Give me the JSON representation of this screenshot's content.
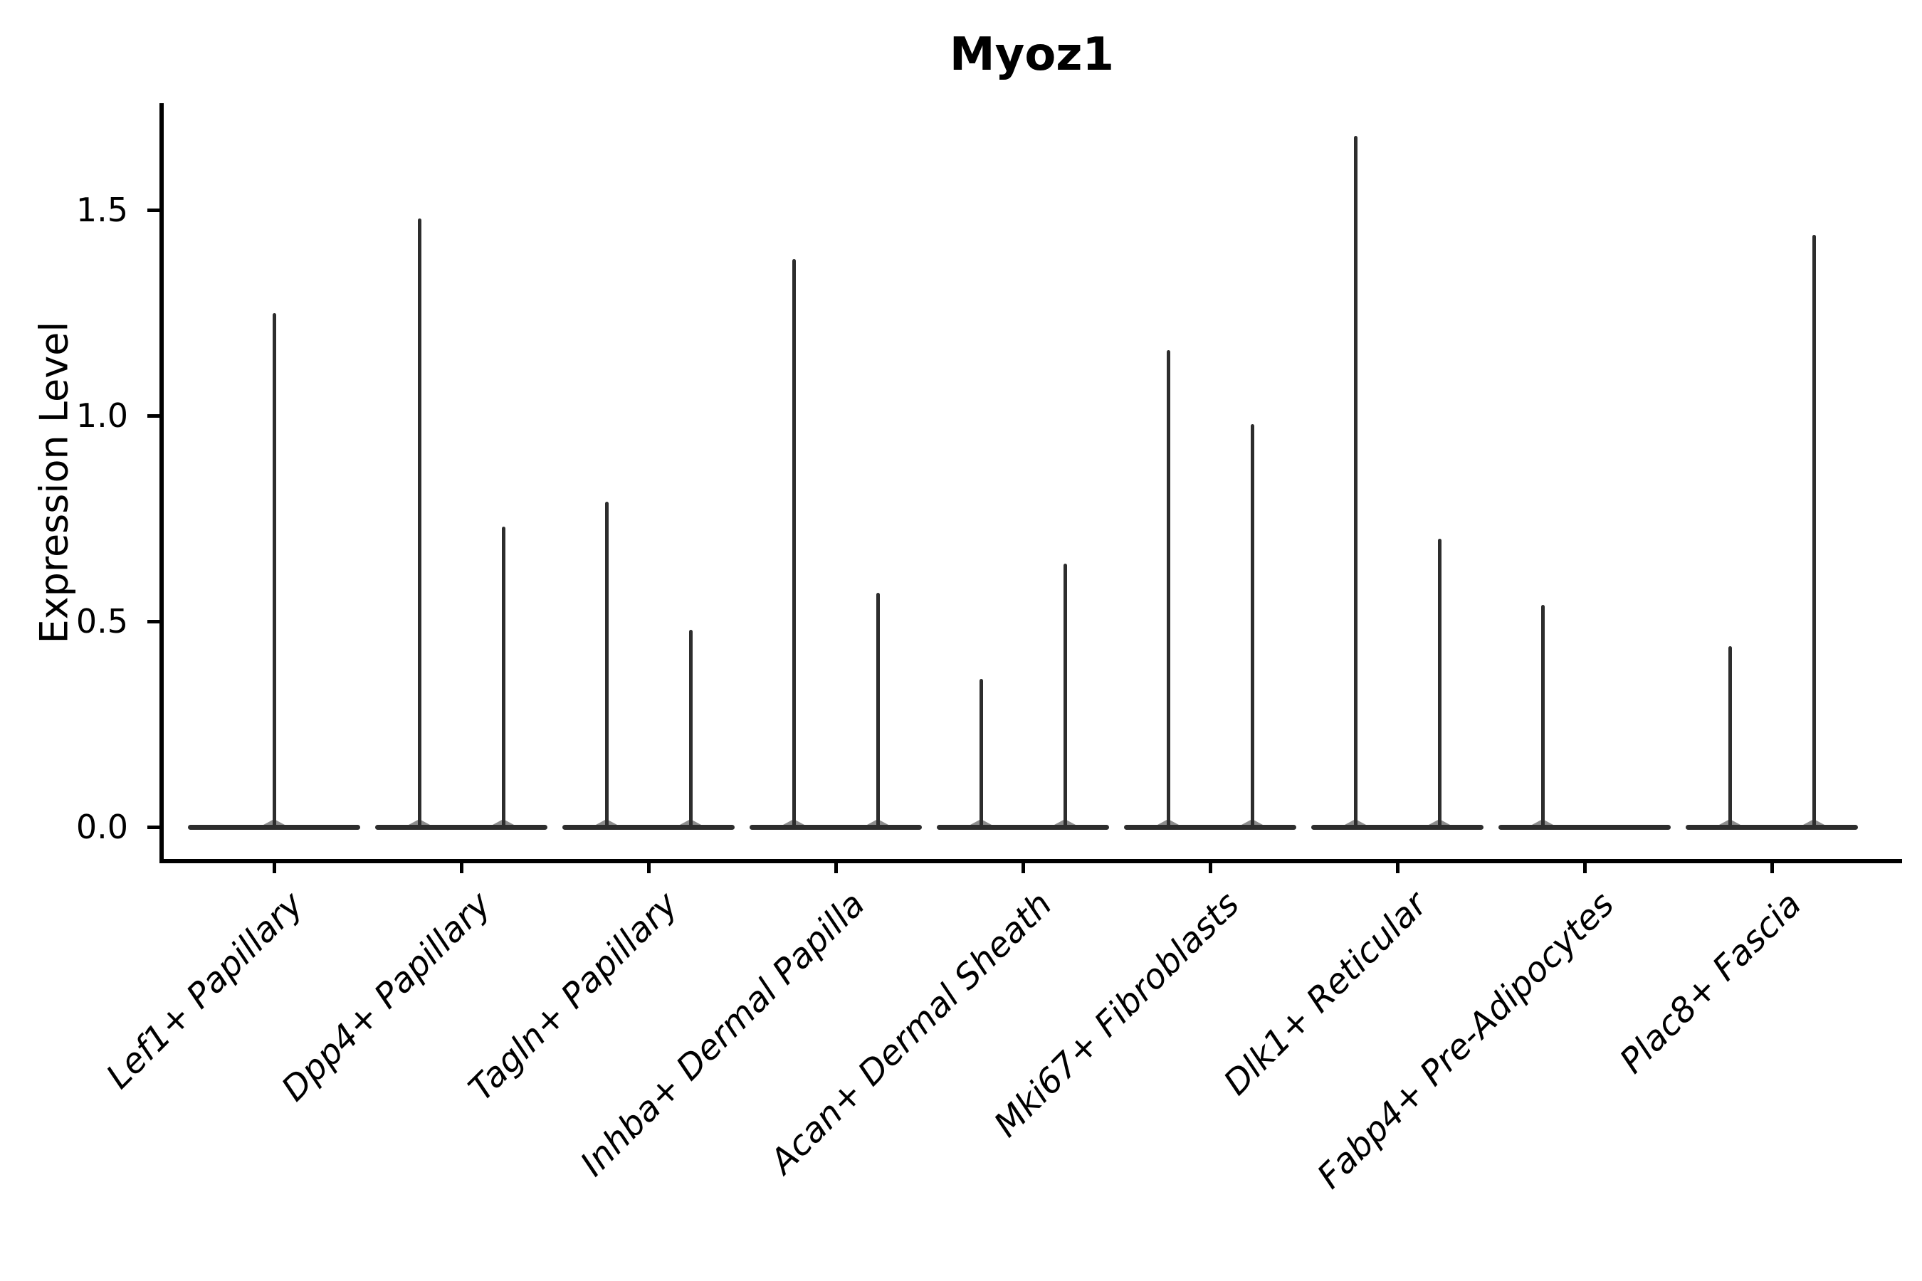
{
  "chart_data": {
    "type": "violin",
    "title": "Myoz1",
    "xlabel": "",
    "ylabel": "Expression Level",
    "ylim": [
      -0.08,
      1.76
    ],
    "yticks": [
      0.0,
      0.5,
      1.0,
      1.5
    ],
    "ytick_labels": [
      "0.0",
      "0.5",
      "1.0",
      "1.5"
    ],
    "grid": "off",
    "legend": "none",
    "ink_color": "#2d2d2d",
    "categories": [
      "Lef1+ Papillary",
      "Dpp4+ Papillary",
      "Tagln+ Papillary",
      "Inhba+ Dermal Papilla",
      "Acan+ Dermal Sheath",
      "Mki67+ Fibroblasts",
      "Dlk1+ Reticular",
      "Fabp4+ Pre-Adipocytes",
      "Plac8+ Fascia"
    ],
    "groups": [
      {
        "category": "Lef1+ Papillary",
        "base_value": 0,
        "spikes": [
          {
            "offset": 0.0,
            "peak": 1.25
          }
        ]
      },
      {
        "category": "Dpp4+ Papillary",
        "base_value": 0,
        "spikes": [
          {
            "offset": -0.22,
            "peak": 1.48
          },
          {
            "offset": 0.22,
            "peak": 0.73
          }
        ]
      },
      {
        "category": "Tagln+ Papillary",
        "base_value": 0,
        "spikes": [
          {
            "offset": -0.22,
            "peak": 0.79
          },
          {
            "offset": 0.22,
            "peak": 0.48
          }
        ]
      },
      {
        "category": "Inhba+ Dermal Papilla",
        "base_value": 0,
        "spikes": [
          {
            "offset": -0.22,
            "peak": 1.38
          },
          {
            "offset": 0.22,
            "peak": 0.57
          }
        ]
      },
      {
        "category": "Acan+ Dermal Sheath",
        "base_value": 0,
        "spikes": [
          {
            "offset": -0.22,
            "peak": 0.36
          },
          {
            "offset": 0.22,
            "peak": 0.64
          }
        ]
      },
      {
        "category": "Mki67+ Fibroblasts",
        "base_value": 0,
        "spikes": [
          {
            "offset": -0.22,
            "peak": 1.16
          },
          {
            "offset": 0.22,
            "peak": 0.98
          }
        ]
      },
      {
        "category": "Dlk1+ Reticular",
        "base_value": 0,
        "spikes": [
          {
            "offset": -0.22,
            "peak": 1.68
          },
          {
            "offset": 0.22,
            "peak": 0.7
          }
        ]
      },
      {
        "category": "Fabp4+ Pre-Adipocytes",
        "base_value": 0,
        "spikes": [
          {
            "offset": -0.22,
            "peak": 0.54
          }
        ]
      },
      {
        "category": "Plac8+ Fascia",
        "base_value": 0,
        "spikes": [
          {
            "offset": -0.22,
            "peak": 0.44
          },
          {
            "offset": 0.22,
            "peak": 1.44
          }
        ]
      }
    ]
  }
}
